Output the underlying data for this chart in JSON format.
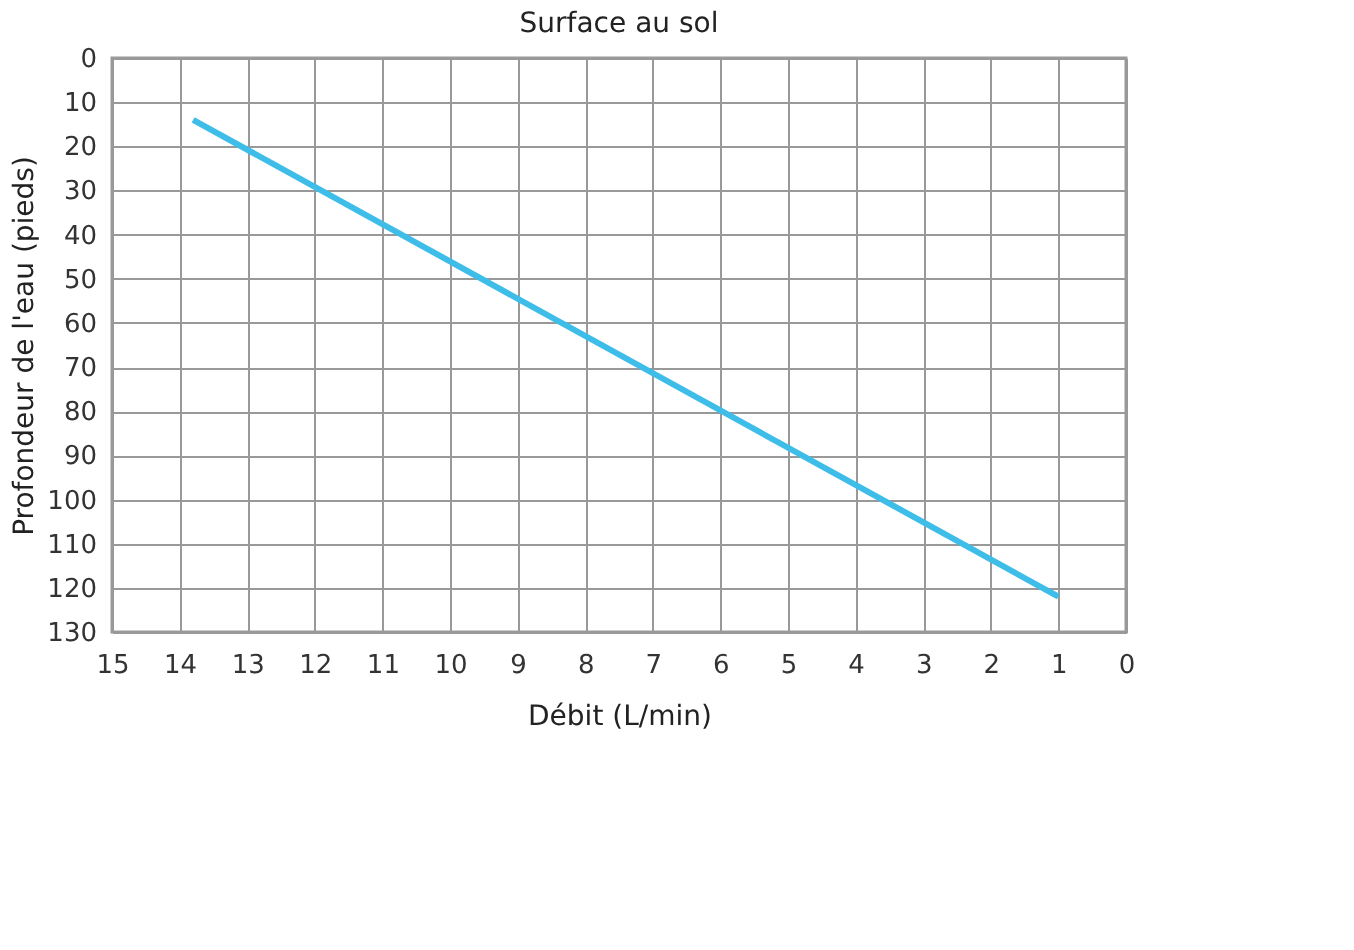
{
  "chart_data": {
    "type": "line",
    "title": "Surface au sol",
    "xlabel": "Débit (L/min)",
    "ylabel": "Profondeur de l'eau (pieds)",
    "x": [
      13.8,
      1
    ],
    "series": [
      {
        "color": "#3dbde8",
        "values": [
          14,
          122
        ]
      }
    ],
    "xlim": [
      15,
      0
    ],
    "xticks": [
      15,
      14,
      13,
      12,
      11,
      10,
      9,
      8,
      7,
      6,
      5,
      4,
      3,
      2,
      1,
      0
    ],
    "ylim": [
      130,
      0
    ],
    "yticks": [
      0,
      10,
      20,
      30,
      40,
      50,
      60,
      70,
      80,
      90,
      100,
      110,
      120,
      130
    ],
    "grid": true,
    "marker": "none",
    "line_style": "solid"
  }
}
